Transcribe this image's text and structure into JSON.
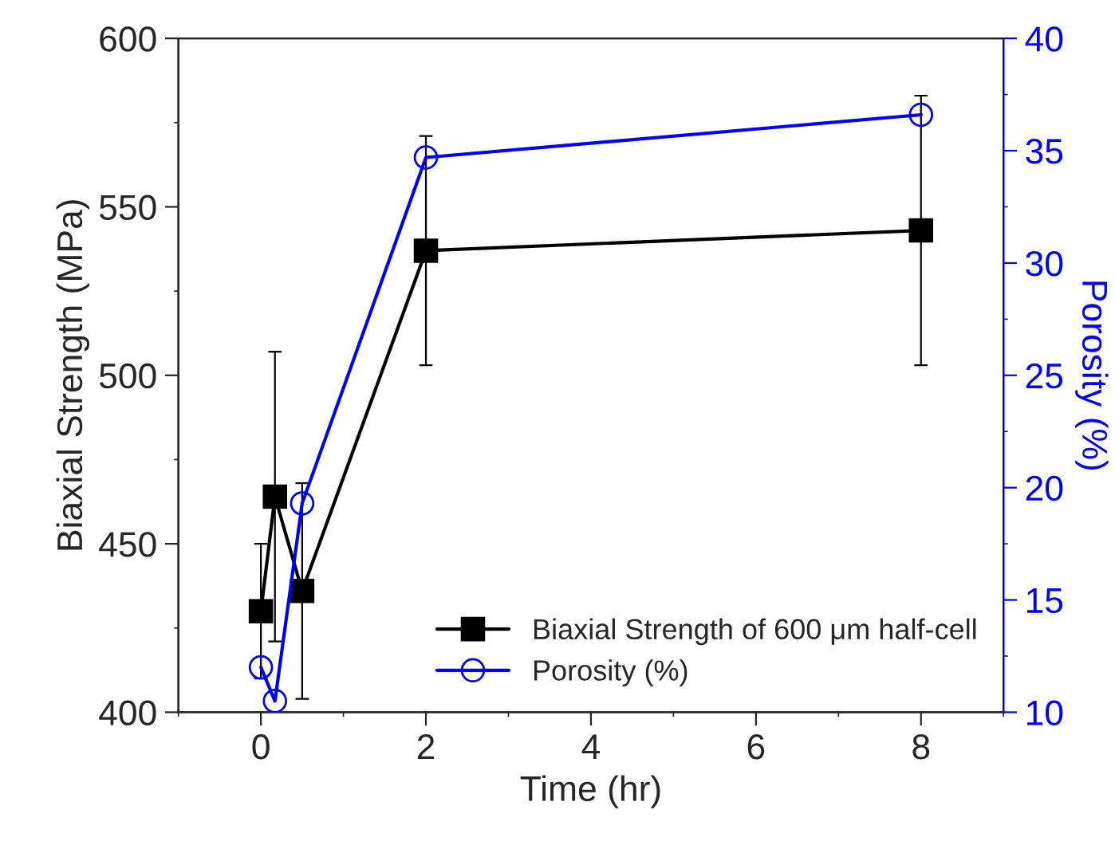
{
  "chart_data": {
    "type": "line",
    "xlabel": "Time (hr)",
    "ylabel": "Biaxial Strength (MPa)",
    "y2label": "Porosity (%)",
    "x": [
      0,
      0.17,
      0.5,
      2,
      8
    ],
    "series": [
      {
        "name": "Biaxial Strength of 600 μm half-cell",
        "color": "#000000",
        "marker": "square",
        "values": [
          430,
          464,
          436,
          537,
          543
        ],
        "errors": [
          20,
          43,
          32,
          34,
          40
        ]
      },
      {
        "name": "Porosity (%)",
        "color": "#0000ff",
        "marker": "circle",
        "axis": "y2",
        "values": [
          12.0,
          10.5,
          19.3,
          34.7,
          36.6
        ]
      }
    ],
    "xlim": [
      -1,
      9
    ],
    "xticks": [
      0,
      2,
      4,
      6,
      8
    ],
    "ylim": [
      400,
      600
    ],
    "yticks": [
      400,
      450,
      500,
      550,
      600
    ],
    "y2lim": [
      10,
      40
    ],
    "y2ticks": [
      10,
      15,
      20,
      25,
      30,
      35,
      40
    ],
    "legend": "bottom right",
    "grid": false,
    "line_style": "solid"
  }
}
